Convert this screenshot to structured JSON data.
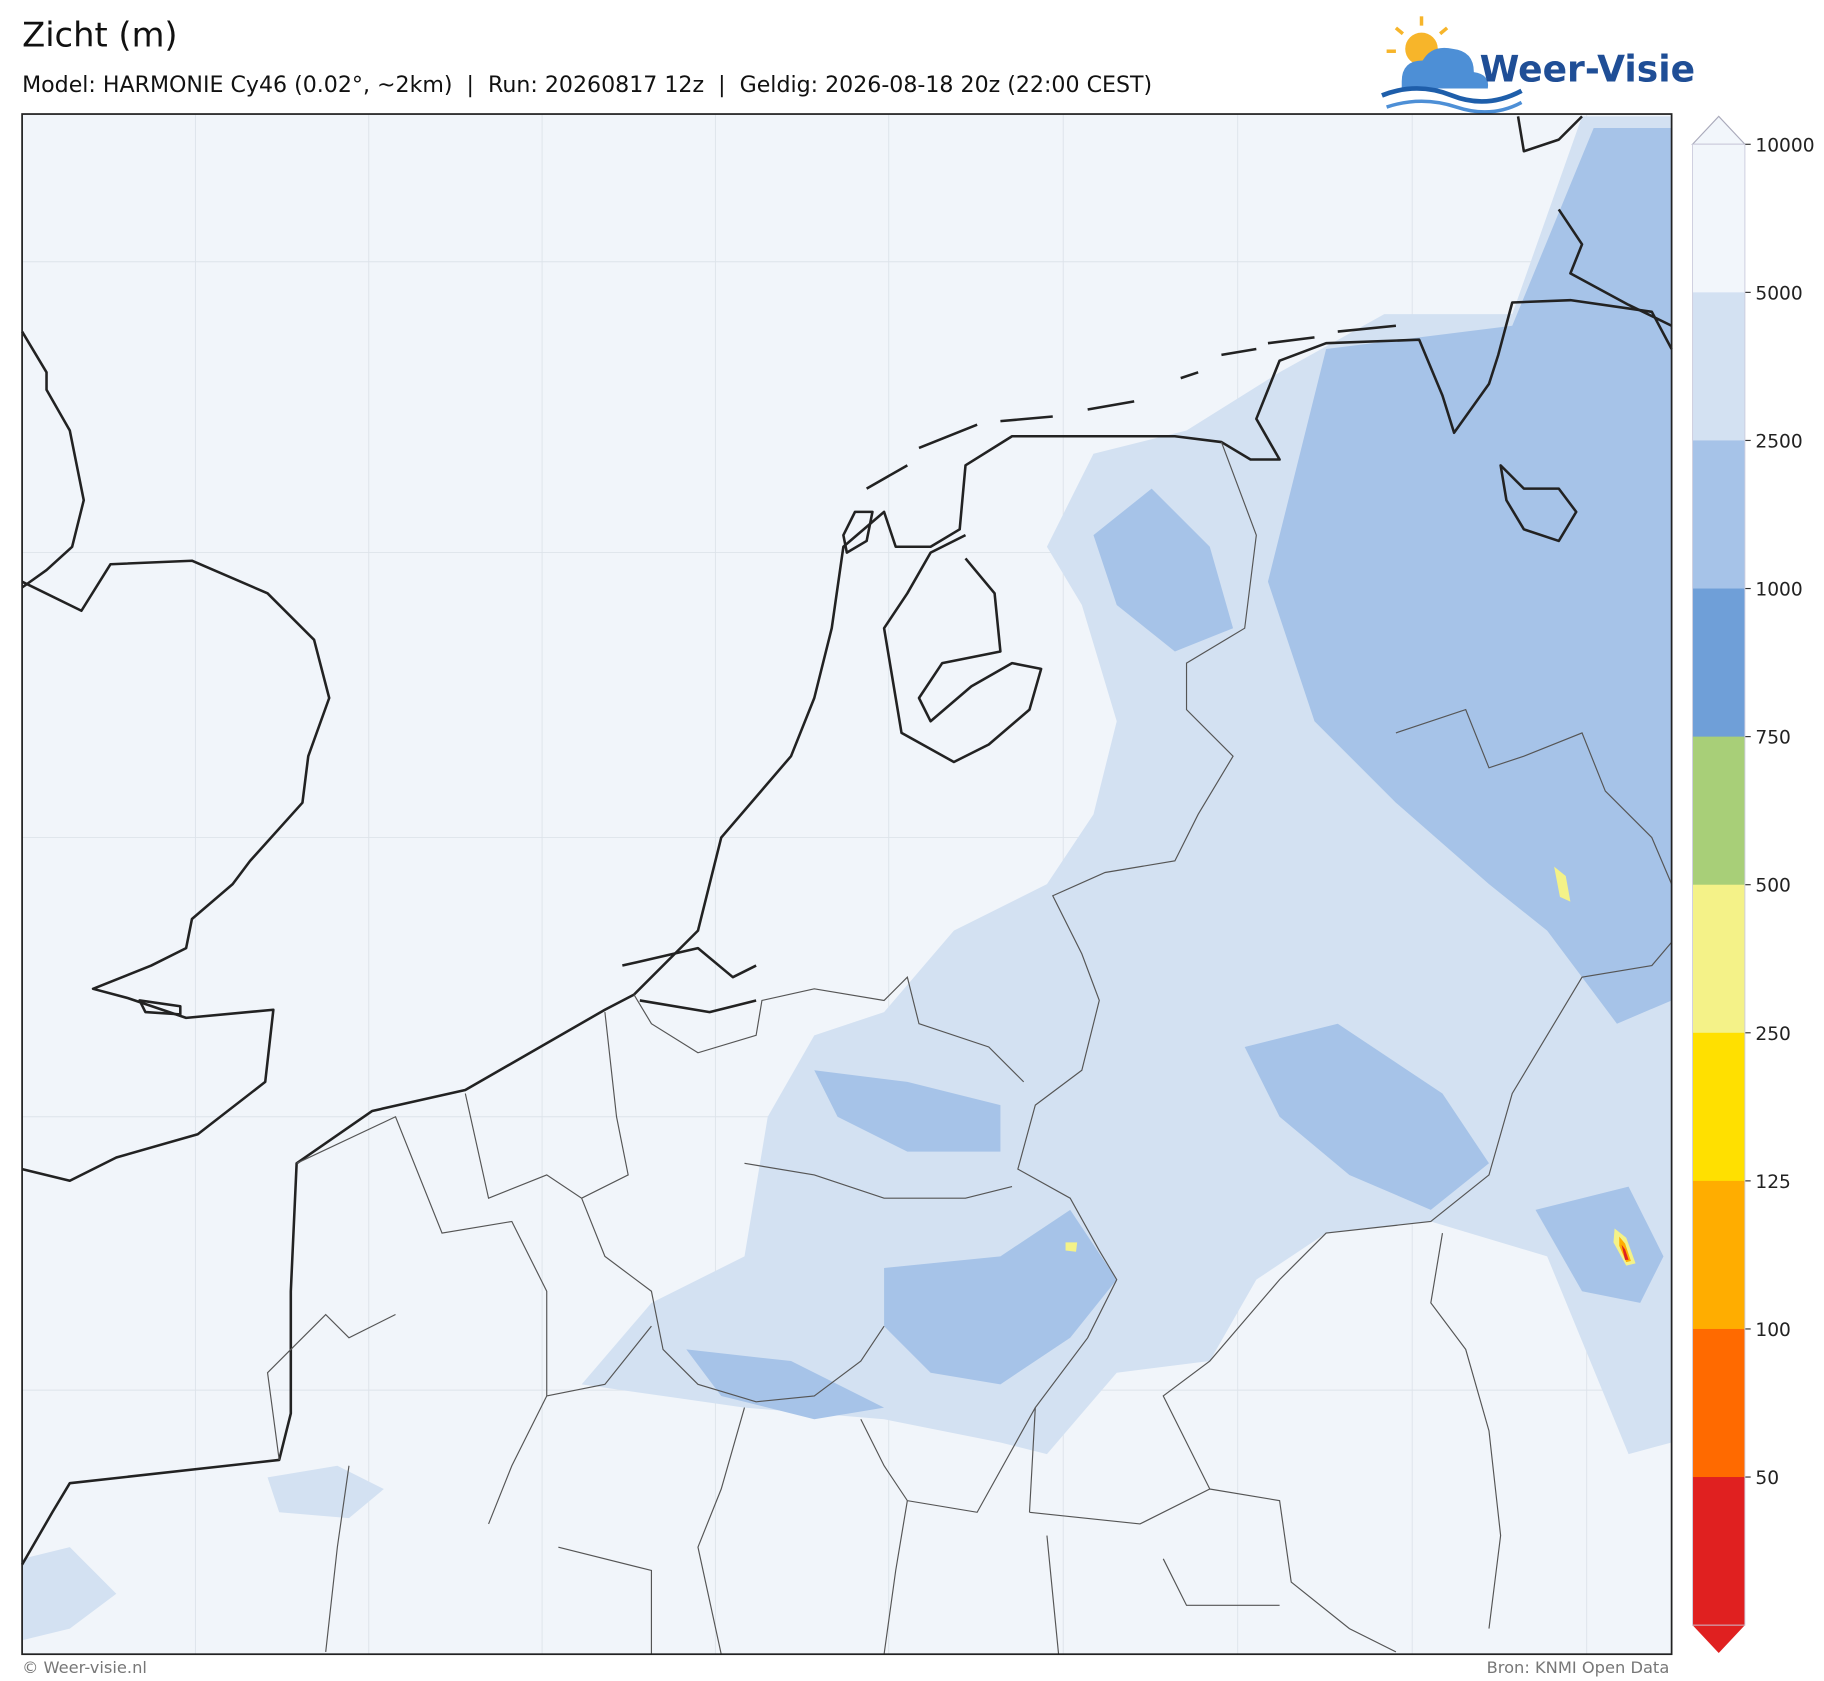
{
  "header": {
    "title": "Zicht (m)",
    "subtitle": "Model: HARMONIE Cy46 (0.02°, ~2km)  |  Run: 20260817 12z  |  Geldig: 2026-08-18 20z (22:00 CEST)",
    "logo": "Weer-Visie"
  },
  "colorbar": {
    "ticks": [
      10000,
      5000,
      2500,
      1000,
      750,
      500,
      250,
      125,
      100,
      50
    ],
    "colors": [
      "#f2f6fb",
      "#d3e1f2",
      "#a6c3e8",
      "#6f9fd8",
      "#a8cf78",
      "#f4f288",
      "#ffe000",
      "#ffad00",
      "#ff6a00",
      "#e02020"
    ]
  },
  "footer": {
    "left": "© Weer-visie.nl",
    "right": "Bron: KNMI Open Data"
  }
}
